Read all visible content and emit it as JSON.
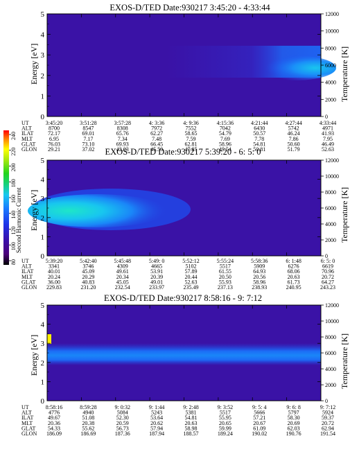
{
  "colorbar": {
    "label": "Second Harmonic Current",
    "ticks": [
      "80",
      "100",
      "120",
      "140",
      "160",
      "180",
      "200",
      "220",
      "240"
    ]
  },
  "row_labels": [
    "UT",
    "ALT",
    "ILAT",
    "MLT",
    "GLAT",
    "GLON"
  ],
  "panels": [
    {
      "title": "EXOS-D/TED   Date:930217  3:45:20 - 4:33:44",
      "columns": [
        [
          "3:45:20",
          "8700",
          "72.17",
          "6.95",
          "76.03",
          "29.21"
        ],
        [
          "3:51:28",
          "8547",
          "69.01",
          "7.17",
          "73.10",
          "37.02"
        ],
        [
          "3:57:28",
          "8308",
          "65.76",
          "7.34",
          "69.93",
          "42.03"
        ],
        [
          "4: 3:36",
          "7972",
          "62.27",
          "7.48",
          "66.45",
          "45.50"
        ],
        [
          "4: 9:36",
          "7552",
          "58.65",
          "7.59",
          "62.81",
          "47.85"
        ],
        [
          "4:15:36",
          "7042",
          "54.79",
          "7.69",
          "58.96",
          "49.54"
        ],
        [
          "4:21:44",
          "6430",
          "50.57",
          "7.78",
          "54.81",
          "50.81"
        ],
        [
          "4:27:44",
          "5742",
          "46.24",
          "7.86",
          "50.60",
          "51.79"
        ],
        [
          "4:33:44",
          "4971",
          "41.93",
          "7.95",
          "46.49",
          "52.63"
        ]
      ]
    },
    {
      "title": "EXOS-D/TED   Date:930217  5:39:20 - 6: 5: 0",
      "columns": [
        [
          "5:39:20",
          "3341",
          "40.01",
          "20.24",
          "36.00",
          "229.83"
        ],
        [
          "5:42:40",
          "3746",
          "45.09",
          "20.29",
          "40.83",
          "231.20"
        ],
        [
          "5:45:48",
          "4309",
          "49.61",
          "20.34",
          "45.05",
          "232.54"
        ],
        [
          "5:49: 0",
          "4665",
          "53.91",
          "20.39",
          "49.01",
          "233.97"
        ],
        [
          "5:52:12",
          "5102",
          "57.89",
          "20.44",
          "52.63",
          "235.49"
        ],
        [
          "5:55:24",
          "5517",
          "61.55",
          "20.50",
          "55.93",
          "237.13"
        ],
        [
          "5:58:36",
          "5909",
          "64.93",
          "20.56",
          "58.96",
          "238.93"
        ],
        [
          "6: 1:48",
          "6276",
          "68.06",
          "20.63",
          "61.73",
          "240.95"
        ],
        [
          "6: 5: 0",
          "6619",
          "70.96",
          "20.72",
          "64.27",
          "243.23"
        ]
      ]
    },
    {
      "title": "EXOS-D/TED   Date:930217  8:58:16 - 9: 7:12",
      "columns": [
        [
          "8:58:16",
          "4776",
          "49.67",
          "20.36",
          "54.33",
          "186.09"
        ],
        [
          "8:59:28",
          "4940",
          "51.08",
          "20.38",
          "55.62",
          "186.69"
        ],
        [
          "9: 0:32",
          "5084",
          "52.30",
          "20.59",
          "56.73",
          "187.36"
        ],
        [
          "9: 1:44",
          "5243",
          "53.64",
          "20.62",
          "57.94",
          "187.94"
        ],
        [
          "9: 2:48",
          "5381",
          "54.81",
          "20.63",
          "58.98",
          "188.57"
        ],
        [
          "9: 3:52",
          "5517",
          "55.95",
          "20.65",
          "59.99",
          "189.24"
        ],
        [
          "9: 5: 4",
          "5666",
          "57.21",
          "20.67",
          "61.09",
          "190.02"
        ],
        [
          "9: 6: 8",
          "5797",
          "58.30",
          "20.69",
          "62.03",
          "190.76"
        ],
        [
          "9: 7:12",
          "5924",
          "59.37",
          "20.72",
          "62.94",
          "191.54"
        ]
      ]
    }
  ],
  "chart_data": [
    {
      "type": "heatmap",
      "title": "EXOS-D/TED   Date:930217  3:45:20 - 4:33:44",
      "ylabel": "Energy [eV]",
      "y2label": "Temperature [K]",
      "ylim": [
        0,
        5
      ],
      "y2lim": [
        0,
        12000
      ],
      "yticks": [
        "0",
        "1",
        "2",
        "3",
        "4",
        "5"
      ],
      "y2ticks": [
        "0",
        "2000",
        "4000",
        "6000",
        "8000",
        "10000",
        "12000"
      ],
      "x_ticks_UT": [
        "3:45:20",
        "3:51:28",
        "3:57:28",
        "4: 3:36",
        "4: 9:36",
        "4:15:36",
        "4:21:44",
        "4:27:44",
        "4:33:44"
      ],
      "colorbar_range": [
        80,
        240
      ],
      "features": [
        {
          "x_range": [
            "4:09:00",
            "4:33:44"
          ],
          "energy_center": 2.5,
          "value": 140
        },
        {
          "x_range": [
            "4:22:00",
            "4:33:44"
          ],
          "energy_center": 2.3,
          "value": 160
        }
      ]
    },
    {
      "type": "heatmap",
      "title": "EXOS-D/TED   Date:930217  5:39:20 - 6: 5: 0",
      "ylabel": "Energy [eV]",
      "y2label": "Temperature [K]",
      "ylim": [
        0,
        5
      ],
      "y2lim": [
        0,
        12000
      ],
      "yticks": [
        "0",
        "1",
        "2",
        "3",
        "4",
        "5"
      ],
      "y2ticks": [
        "0",
        "2000",
        "4000",
        "6000",
        "8000",
        "10000",
        "12000"
      ],
      "x_ticks_UT": [
        "5:39:20",
        "5:42:40",
        "5:45:48",
        "5:49: 0",
        "5:52:12",
        "5:55:24",
        "5:58:36",
        "6: 1:48",
        "6: 5: 0"
      ],
      "colorbar_range": [
        80,
        240
      ],
      "features": [
        {
          "x_range": [
            "5:39:20",
            "5:51:30"
          ],
          "energy_center": 2.2,
          "value": 160
        },
        {
          "x_range": [
            "5:39:20",
            "5:47:00"
          ],
          "energy_center": 2.1,
          "value": 180
        }
      ]
    },
    {
      "type": "heatmap",
      "title": "EXOS-D/TED   Date:930217  8:58:16 - 9: 7:12",
      "ylabel": "Energy [eV]",
      "y2label": "Temperature [K]",
      "ylim": [
        0,
        5
      ],
      "y2lim": [
        0,
        12000
      ],
      "yticks": [
        "0",
        "1",
        "2",
        "3",
        "4",
        "5"
      ],
      "y2ticks": [
        "0",
        "2000",
        "4000",
        "6000",
        "8000",
        "10000",
        "12000"
      ],
      "x_ticks_UT": [
        "8:58:16",
        "8:59:28",
        "9: 0:32",
        "9: 1:44",
        "9: 2:48",
        "9: 3:52",
        "9: 5: 4",
        "9: 6: 8",
        "9: 7:12"
      ],
      "colorbar_range": [
        80,
        240
      ],
      "features": [
        {
          "x_range": [
            "8:58:16",
            "9:07:12"
          ],
          "energy_center": 2.55,
          "value": 140
        }
      ]
    }
  ]
}
